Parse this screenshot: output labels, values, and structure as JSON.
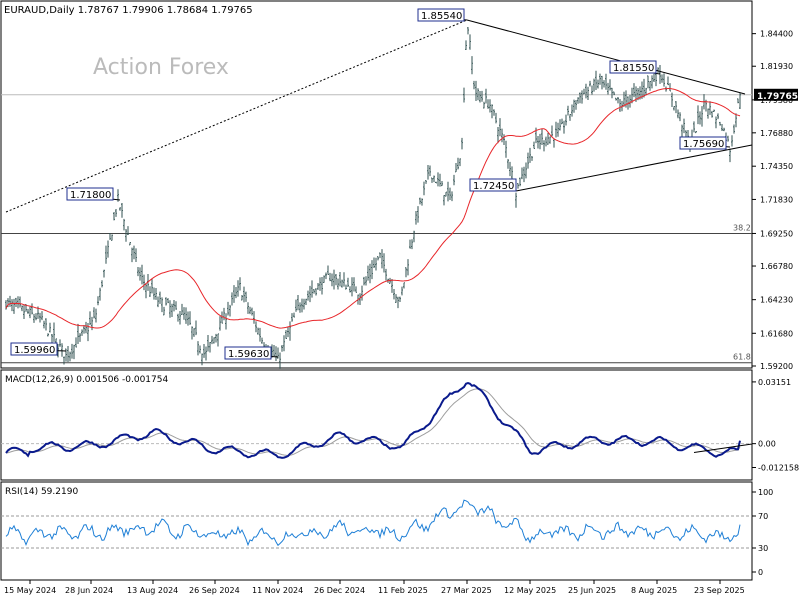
{
  "header": {
    "symbol_info": "EURAUD,Daily  1.78767 1.79906 1.78684 1.79765",
    "watermark": "Action Forex"
  },
  "chart_data": [
    {
      "type": "candlestick",
      "symbol": "EURAUD",
      "timeframe": "Daily",
      "ohlc_latest": {
        "open": 1.78767,
        "high": 1.79906,
        "low": 1.78684,
        "close": 1.79765
      },
      "current_price_label": "1.79765",
      "ylim": [
        1.592,
        1.868
      ],
      "y_ticks": [
        "1.84400",
        "1.81930",
        "1.79380",
        "1.76880",
        "1.74350",
        "1.71830",
        "1.69250",
        "1.66780",
        "1.64230",
        "1.61680",
        "1.59200"
      ],
      "y_tick_values": [
        1.844,
        1.8193,
        1.7938,
        1.7688,
        1.7435,
        1.7183,
        1.6925,
        1.6678,
        1.6423,
        1.6168,
        1.592
      ],
      "x_ticks": [
        "15 May 2024",
        "28 Jun 2024",
        "13 Aug 2024",
        "26 Sep 2024",
        "11 Nov 2024",
        "26 Dec 2024",
        "11 Feb 2025",
        "27 Mar 2025",
        "12 May 2025",
        "25 Jun 2025",
        "8 Aug 2025",
        "23 Sep 2025"
      ],
      "price_annotations": [
        {
          "label": "1.85540",
          "value": 1.8554,
          "date": "27 Mar 2025"
        },
        {
          "label": "1.81550",
          "value": 1.8155,
          "date": "Aug 2025"
        },
        {
          "label": "1.71800",
          "value": 1.718,
          "date": "Aug 2024"
        },
        {
          "label": "1.72450",
          "value": 1.7245,
          "date": "May 2025"
        },
        {
          "label": "1.75690",
          "value": 1.7569,
          "date": "Sep 2025"
        },
        {
          "label": "1.59960",
          "value": 1.5996,
          "date": "Jun 2024"
        },
        {
          "label": "1.59630",
          "value": 1.5963,
          "date": "Nov 2024"
        }
      ],
      "fibonacci_levels": [
        {
          "label": "38.2",
          "value": 1.6925
        },
        {
          "label": "61.8",
          "value": 1.5945
        }
      ],
      "horizontal_line": 1.79765,
      "moving_average": {
        "color": "#e8262a"
      },
      "trendlines": [
        {
          "style": "dotted",
          "from": {
            "date": "May 2024",
            "value": 1.714
          },
          "to": {
            "date": "27 Mar 2025",
            "value": 1.8554
          }
        },
        {
          "style": "solid",
          "from": {
            "date": "27 Mar 2025",
            "value": 1.8554
          },
          "to": {
            "date": "Sep 2025",
            "value": 1.795
          }
        },
        {
          "style": "solid",
          "from": {
            "date": "May 2025",
            "value": 1.7245
          },
          "to": {
            "date": "Sep 2025",
            "value": 1.7615
          }
        }
      ],
      "colors": {
        "candle": "#2f4f4f",
        "grid_line": "#888888",
        "label_border": "#1f2f8f"
      }
    },
    {
      "type": "line",
      "title": "MACD(12,26,9) 0.001506 -0.001754",
      "y_ticks": [
        "0.03151",
        "0.00",
        "-0.012158"
      ],
      "y_tick_values": [
        0.03151,
        0.0,
        -0.012158
      ],
      "ylim": [
        -0.0165,
        0.0335
      ],
      "series": [
        {
          "name": "MACD",
          "value_latest": 0.001506,
          "color": "#0a1a8c"
        },
        {
          "name": "Signal",
          "value_latest": -0.001754,
          "color": "#9e9e9e"
        }
      ],
      "waypoints": [
        [
          "15 May 2024",
          -0.002
        ],
        [
          "28 Jun 2024",
          -0.001
        ],
        [
          "13 Aug 2024",
          0.0055
        ],
        [
          "26 Sep 2024",
          -0.003
        ],
        [
          "11 Nov 2024",
          -0.006
        ],
        [
          "26 Dec 2024",
          0.0038
        ],
        [
          "11 Feb 2025",
          -0.0015
        ],
        [
          "27 Mar 2025",
          0.033
        ],
        [
          "12 May 2025",
          -0.0035
        ],
        [
          "25 Jun 2025",
          0.0018
        ],
        [
          "8 Aug 2025",
          0.0012
        ],
        [
          "23 Sep 2025",
          -0.0045
        ]
      ]
    },
    {
      "type": "line",
      "title": "RSI(14) 59.2190",
      "y_ticks": [
        "100",
        "70",
        "30",
        "0"
      ],
      "y_tick_values": [
        100,
        70,
        30,
        0
      ],
      "ylim": [
        0,
        100
      ],
      "series": [
        {
          "name": "RSI",
          "value_latest": 59.219,
          "color": "#1e7fd6"
        }
      ]
    }
  ]
}
